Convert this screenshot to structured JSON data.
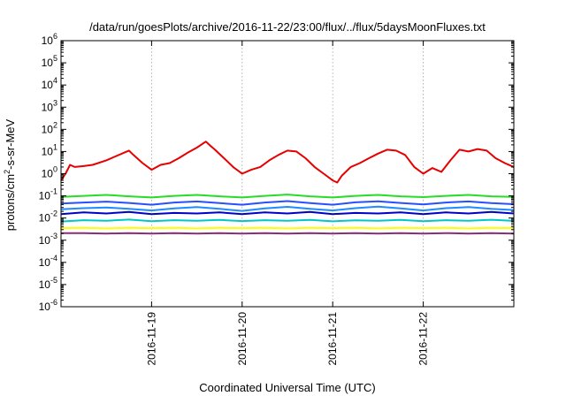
{
  "chart_data": {
    "type": "line",
    "title": "/data/run/goesPlots/archive/2016-11-22/23:00/flux/../flux/5daysMoonFluxes.txt",
    "xlabel": "Coordinated Universal Time (UTC)",
    "ylabel": {
      "base": "protons/cm",
      "sup": "2",
      "rest": "-s-sr-MeV"
    },
    "yscale": "log",
    "ylim": [
      1e-06,
      1000000.0
    ],
    "xlim": [
      0,
      5
    ],
    "x_ticks": [
      {
        "x": 1,
        "label": "2016-11-19"
      },
      {
        "x": 2,
        "label": "2016-11-20"
      },
      {
        "x": 3,
        "label": "2016-11-21"
      },
      {
        "x": 4,
        "label": "2016-11-22"
      }
    ],
    "y_ticks": [
      {
        "value": 1e-06,
        "base": "10",
        "exp": "-6"
      },
      {
        "value": 1e-05,
        "base": "10",
        "exp": "-5"
      },
      {
        "value": 0.0001,
        "base": "10",
        "exp": "-4"
      },
      {
        "value": 0.001,
        "base": "10",
        "exp": "-3"
      },
      {
        "value": 0.01,
        "base": "10",
        "exp": "-2"
      },
      {
        "value": 0.1,
        "base": "10",
        "exp": "-1"
      },
      {
        "value": 1,
        "base": "10",
        "exp": "0"
      },
      {
        "value": 10,
        "base": "10",
        "exp": "1"
      },
      {
        "value": 100,
        "base": "10",
        "exp": "2"
      },
      {
        "value": 1000,
        "base": "10",
        "exp": "3"
      },
      {
        "value": 10000,
        "base": "10",
        "exp": "4"
      },
      {
        "value": 100000,
        "base": "10",
        "exp": "5"
      },
      {
        "value": 1000000,
        "base": "10",
        "exp": "6"
      }
    ],
    "grid": true,
    "series": [
      {
        "color": "#8b2c7a",
        "x": [
          0,
          0.25,
          0.5,
          0.75,
          1,
          1.25,
          1.5,
          1.75,
          2,
          2.25,
          2.5,
          2.75,
          3,
          3.25,
          3.5,
          3.75,
          4,
          4.25,
          4.5,
          4.75,
          5
        ],
        "y": [
          0.0021,
          0.0021,
          0.002,
          0.0021,
          0.002,
          0.0021,
          0.002,
          0.0021,
          0.002,
          0.0021,
          0.002,
          0.0021,
          0.002,
          0.0021,
          0.002,
          0.0021,
          0.002,
          0.0021,
          0.002,
          0.0021,
          0.002
        ]
      },
      {
        "color": "#ffff00",
        "x": [
          0,
          0.25,
          0.5,
          0.75,
          1,
          1.25,
          1.5,
          1.75,
          2,
          2.25,
          2.5,
          2.75,
          3,
          3.25,
          3.5,
          3.75,
          4,
          4.25,
          4.5,
          4.75,
          5
        ],
        "y": [
          0.0035,
          0.0036,
          0.0034,
          0.0036,
          0.0035,
          0.0036,
          0.0034,
          0.0036,
          0.0035,
          0.0036,
          0.0034,
          0.0036,
          0.0035,
          0.0036,
          0.0034,
          0.0036,
          0.0035,
          0.0036,
          0.0034,
          0.0036,
          0.0035
        ]
      },
      {
        "color": "#00c8c8",
        "x": [
          0,
          0.25,
          0.5,
          0.75,
          1,
          1.25,
          1.5,
          1.75,
          2,
          2.25,
          2.5,
          2.75,
          3,
          3.25,
          3.5,
          3.75,
          4,
          4.25,
          4.5,
          4.75,
          5
        ],
        "y": [
          0.007,
          0.008,
          0.0075,
          0.0085,
          0.0072,
          0.008,
          0.0075,
          0.0082,
          0.0073,
          0.008,
          0.0076,
          0.0083,
          0.0071,
          0.0079,
          0.0075,
          0.0082,
          0.0072,
          0.008,
          0.0076,
          0.0084,
          0.0074
        ]
      },
      {
        "color": "#0000c8",
        "x": [
          0,
          0.25,
          0.5,
          0.75,
          1,
          1.25,
          1.5,
          1.75,
          2,
          2.25,
          2.5,
          2.75,
          3,
          3.25,
          3.5,
          3.75,
          4,
          4.25,
          4.5,
          4.75,
          5
        ],
        "y": [
          0.015,
          0.018,
          0.016,
          0.019,
          0.015,
          0.017,
          0.016,
          0.018,
          0.015,
          0.018,
          0.016,
          0.019,
          0.015,
          0.017,
          0.016,
          0.018,
          0.015,
          0.018,
          0.016,
          0.019,
          0.016
        ]
      },
      {
        "color": "#1e8cff",
        "x": [
          0,
          0.25,
          0.5,
          0.75,
          1,
          1.25,
          1.5,
          1.75,
          2,
          2.25,
          2.5,
          2.75,
          3,
          3.25,
          3.5,
          3.75,
          4,
          4.25,
          4.5,
          4.75,
          5
        ],
        "y": [
          0.025,
          0.028,
          0.03,
          0.026,
          0.022,
          0.027,
          0.031,
          0.026,
          0.021,
          0.027,
          0.032,
          0.026,
          0.022,
          0.028,
          0.033,
          0.027,
          0.022,
          0.028,
          0.031,
          0.026,
          0.023
        ]
      },
      {
        "color": "#2850ff",
        "x": [
          0,
          0.25,
          0.5,
          0.75,
          1,
          1.25,
          1.5,
          1.75,
          2,
          2.25,
          2.5,
          2.75,
          3,
          3.25,
          3.5,
          3.75,
          4,
          4.25,
          4.5,
          4.75,
          5
        ],
        "y": [
          0.045,
          0.05,
          0.055,
          0.048,
          0.04,
          0.05,
          0.056,
          0.047,
          0.04,
          0.05,
          0.058,
          0.047,
          0.04,
          0.051,
          0.057,
          0.048,
          0.041,
          0.05,
          0.056,
          0.047,
          0.042
        ]
      },
      {
        "color": "#28dc28",
        "x": [
          0,
          0.25,
          0.5,
          0.75,
          1,
          1.25,
          1.5,
          1.75,
          2,
          2.25,
          2.5,
          2.75,
          3,
          3.25,
          3.5,
          3.75,
          4,
          4.25,
          4.5,
          4.75,
          5
        ],
        "y": [
          0.09,
          0.1,
          0.11,
          0.095,
          0.085,
          0.1,
          0.11,
          0.095,
          0.085,
          0.1,
          0.115,
          0.095,
          0.085,
          0.1,
          0.11,
          0.095,
          0.088,
          0.1,
          0.11,
          0.095,
          0.09
        ]
      },
      {
        "color": "#e60000",
        "x": [
          0,
          0.05,
          0.1,
          0.15,
          0.25,
          0.35,
          0.5,
          0.6,
          0.7,
          0.75,
          0.8,
          0.9,
          1.0,
          1.1,
          1.2,
          1.3,
          1.4,
          1.5,
          1.6,
          1.65,
          1.7,
          1.8,
          1.9,
          2.0,
          2.1,
          2.2,
          2.3,
          2.4,
          2.5,
          2.6,
          2.7,
          2.8,
          2.9,
          3.0,
          3.05,
          3.1,
          3.2,
          3.3,
          3.4,
          3.5,
          3.6,
          3.7,
          3.8,
          3.9,
          4.0,
          4.1,
          4.2,
          4.3,
          4.4,
          4.5,
          4.6,
          4.7,
          4.8,
          4.9,
          5.0
        ],
        "y": [
          0.5,
          1.0,
          2.5,
          2.0,
          2.2,
          2.5,
          4.0,
          6.0,
          9.0,
          11.0,
          7.0,
          3.0,
          1.5,
          2.5,
          3.0,
          5.0,
          9.0,
          15.0,
          28.0,
          18.0,
          12.0,
          5.0,
          2.0,
          1.0,
          1.5,
          2.0,
          4.0,
          7.0,
          11.0,
          10.0,
          5.0,
          2.0,
          1.0,
          0.5,
          0.4,
          0.8,
          2.0,
          3.0,
          5.0,
          8.0,
          12.0,
          11.0,
          7.0,
          2.0,
          1.0,
          1.8,
          1.2,
          4.0,
          12.0,
          10.0,
          13.0,
          11.0,
          5.0,
          3.0,
          2.0
        ]
      }
    ]
  }
}
